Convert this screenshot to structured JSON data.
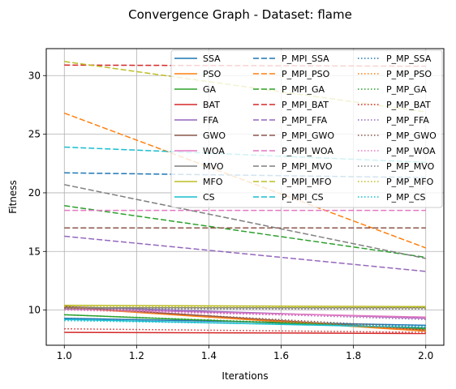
{
  "chart_data": {
    "type": "line",
    "title": "Convergence Graph - Dataset: flame",
    "xlabel": "Iterations",
    "ylabel": "Fitness",
    "xlim": [
      0.95,
      2.05
    ],
    "ylim": [
      7.0,
      32.3
    ],
    "xticks": [
      "1.0",
      "1.2",
      "1.4",
      "1.6",
      "1.8",
      "2.0"
    ],
    "yticks": [
      "10",
      "15",
      "20",
      "25",
      "30"
    ],
    "x": [
      1.0,
      2.0
    ],
    "grid": true,
    "legend_location": "upper-right",
    "legend_columns": 3,
    "series": [
      {
        "name": "SSA",
        "color": "#1f77b4",
        "dash": "solid",
        "values": [
          9.3,
          8.7
        ]
      },
      {
        "name": "PSO",
        "color": "#ff7f0e",
        "dash": "solid",
        "values": [
          10.2,
          8.2
        ]
      },
      {
        "name": "GA",
        "color": "#2ca02c",
        "dash": "solid",
        "values": [
          9.6,
          8.4
        ]
      },
      {
        "name": "BAT",
        "color": "#d62728",
        "dash": "solid",
        "values": [
          8.1,
          8.0
        ]
      },
      {
        "name": "FFA",
        "color": "#9467bd",
        "dash": "solid",
        "values": [
          10.3,
          9.3
        ]
      },
      {
        "name": "GWO",
        "color": "#8c564b",
        "dash": "solid",
        "values": [
          10.3,
          8.3
        ]
      },
      {
        "name": "WOA",
        "color": "#e377c2",
        "dash": "solid",
        "values": [
          10.1,
          9.4
        ]
      },
      {
        "name": "MVO",
        "color": "#7f7f7f",
        "dash": "solid",
        "values": [
          10.2,
          10.2
        ]
      },
      {
        "name": "MFO",
        "color": "#bcbd22",
        "dash": "solid",
        "values": [
          10.4,
          10.3
        ]
      },
      {
        "name": "CS",
        "color": "#17becf",
        "dash": "solid",
        "values": [
          9.2,
          8.5
        ]
      },
      {
        "name": "P_MPI_SSA",
        "color": "#1f77b4",
        "dash": "dashed",
        "values": [
          21.7,
          21.3
        ]
      },
      {
        "name": "P_MPI_PSO",
        "color": "#ff7f0e",
        "dash": "dashed",
        "values": [
          26.8,
          15.3
        ]
      },
      {
        "name": "P_MPI_GA",
        "color": "#2ca02c",
        "dash": "dashed",
        "values": [
          18.9,
          14.5
        ]
      },
      {
        "name": "P_MPI_BAT",
        "color": "#d62728",
        "dash": "dashed",
        "values": [
          30.9,
          30.8
        ]
      },
      {
        "name": "P_MPI_FFA",
        "color": "#9467bd",
        "dash": "dashed",
        "values": [
          16.3,
          13.3
        ]
      },
      {
        "name": "P_MPI_GWO",
        "color": "#8c564b",
        "dash": "dashed",
        "values": [
          17.0,
          17.0
        ]
      },
      {
        "name": "P_MPI_WOA",
        "color": "#e377c2",
        "dash": "dashed",
        "values": [
          18.5,
          18.5
        ]
      },
      {
        "name": "P_MPI_MVO",
        "color": "#7f7f7f",
        "dash": "dashed",
        "values": [
          20.7,
          14.4
        ]
      },
      {
        "name": "P_MPI_MFO",
        "color": "#bcbd22",
        "dash": "dashed",
        "values": [
          31.2,
          26.9
        ]
      },
      {
        "name": "P_MPI_CS",
        "color": "#17becf",
        "dash": "dashed",
        "values": [
          23.9,
          22.6
        ]
      },
      {
        "name": "P_MP_SSA",
        "color": "#1f77b4",
        "dash": "dotted",
        "values": [
          9.3,
          8.7
        ]
      },
      {
        "name": "P_MP_PSO",
        "color": "#ff7f0e",
        "dash": "dotted",
        "values": [
          10.3,
          8.3
        ]
      },
      {
        "name": "P_MP_GA",
        "color": "#2ca02c",
        "dash": "dotted",
        "values": [
          9.6,
          8.5
        ]
      },
      {
        "name": "P_MP_BAT",
        "color": "#d62728",
        "dash": "dotted",
        "values": [
          8.4,
          8.1
        ]
      },
      {
        "name": "P_MP_FFA",
        "color": "#9467bd",
        "dash": "dotted",
        "values": [
          10.2,
          9.2
        ]
      },
      {
        "name": "P_MP_GWO",
        "color": "#8c564b",
        "dash": "dotted",
        "values": [
          10.2,
          8.5
        ]
      },
      {
        "name": "P_MP_WOA",
        "color": "#e377c2",
        "dash": "dotted",
        "values": [
          10.0,
          9.3
        ]
      },
      {
        "name": "P_MP_MVO",
        "color": "#7f7f7f",
        "dash": "dotted",
        "values": [
          10.1,
          10.1
        ]
      },
      {
        "name": "P_MP_MFO",
        "color": "#bcbd22",
        "dash": "dotted",
        "values": [
          10.3,
          10.2
        ]
      },
      {
        "name": "P_MP_CS",
        "color": "#17becf",
        "dash": "dotted",
        "values": [
          9.1,
          8.6
        ]
      }
    ]
  }
}
